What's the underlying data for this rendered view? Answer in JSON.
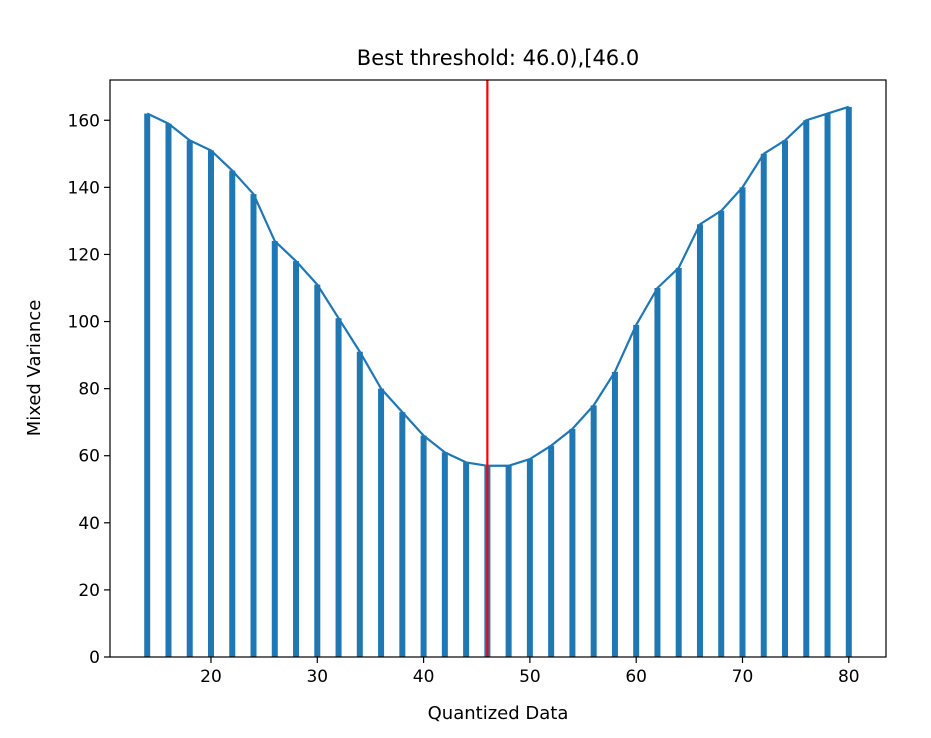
{
  "chart_data": {
    "type": "bar",
    "title": "Best threshold: 46.0),[46.0",
    "xlabel": "Quantized Data",
    "ylabel": "Mixed Variance",
    "xlim": [
      10.5,
      83.5
    ],
    "ylim": [
      0,
      172
    ],
    "x_ticks": [
      20,
      30,
      40,
      50,
      60,
      70,
      80
    ],
    "y_ticks": [
      0,
      20,
      40,
      60,
      80,
      100,
      120,
      140,
      160
    ],
    "grid": false,
    "legend": "none",
    "x": [
      14,
      16,
      18,
      20,
      22,
      24,
      26,
      28,
      30,
      32,
      34,
      36,
      38,
      40,
      42,
      44,
      46,
      48,
      50,
      52,
      54,
      56,
      58,
      60,
      62,
      64,
      66,
      68,
      70,
      72,
      74,
      76,
      78,
      80
    ],
    "values": [
      162,
      159,
      154,
      151,
      145,
      138,
      124,
      118,
      111,
      101,
      91,
      80,
      73,
      66,
      61,
      58,
      57,
      57,
      59,
      63,
      68,
      75,
      85,
      99,
      110,
      116,
      129,
      133,
      140,
      150,
      154,
      160,
      162,
      164
    ],
    "threshold": 46.0,
    "colors": {
      "bars": "#1f77b4",
      "line": "#1f77b4",
      "threshold": "#ff0000"
    }
  }
}
